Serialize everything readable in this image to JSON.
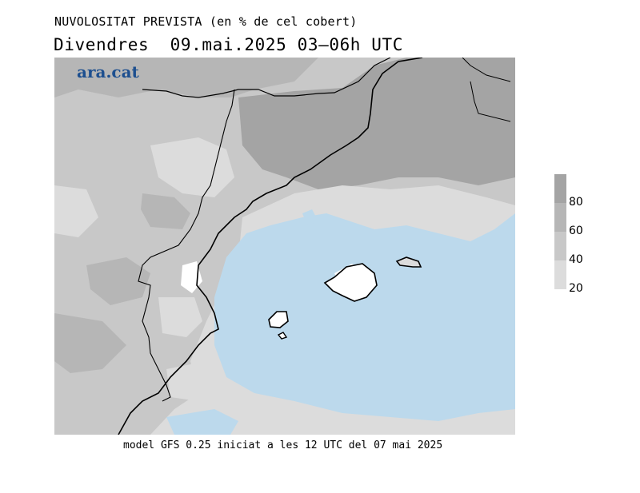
{
  "header": {
    "title": "NUVOLOSITAT PREVISTA (en % de cel cobert)",
    "subtitle": "Divendres  09.mai.2025 03—06h UTC"
  },
  "logo": {
    "text": "ara.cat",
    "color": "#1d4f8f"
  },
  "footer": {
    "text": "model GFS 0.25 iniciat a les 12 UTC del 07 mai 2025"
  },
  "legend": {
    "ticks": [
      "80",
      "60",
      "40",
      "20"
    ],
    "colors": [
      "#a4a4a4",
      "#b6b6b6",
      "#c8c8c8",
      "#dcdcdc"
    ]
  },
  "map": {
    "sea_color": "#bcd9ec",
    "coast_color": "#000000"
  }
}
